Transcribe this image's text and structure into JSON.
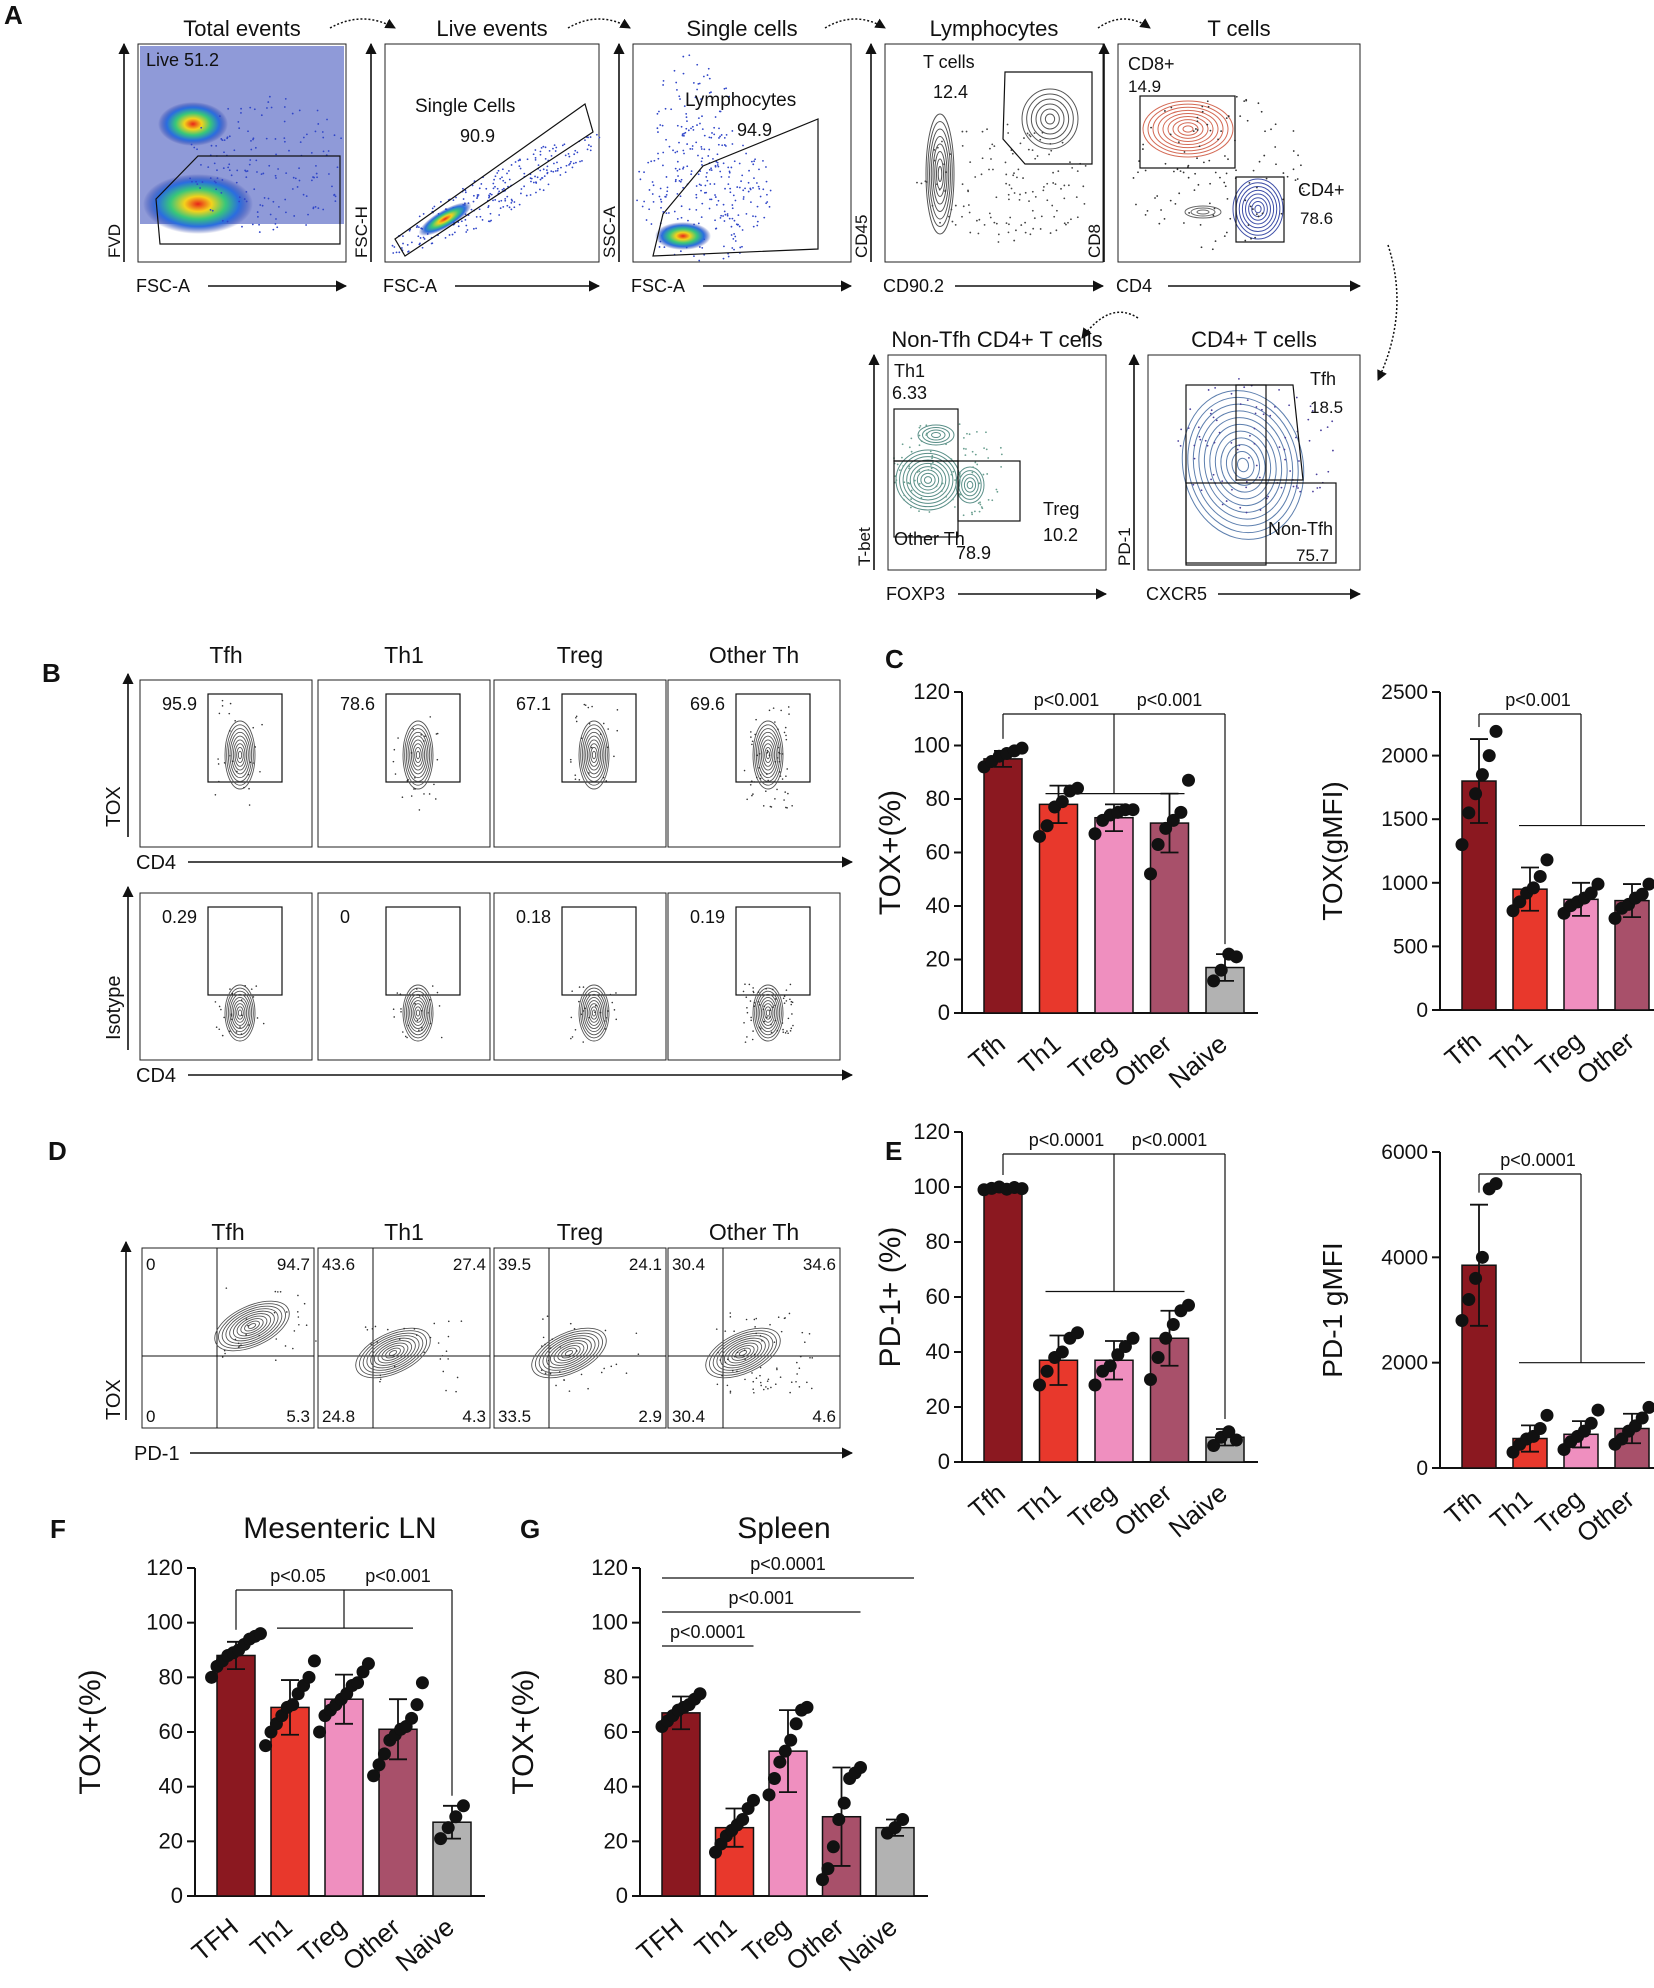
{
  "panel_letters": [
    "A",
    "B",
    "C",
    "D",
    "E",
    "F",
    "G"
  ],
  "colors": {
    "tfh": "#8b1820",
    "th1": "#e8382c",
    "treg": "#ef8fbf",
    "other": "#a8506a",
    "naive": "#b2b2b2",
    "dot": "#111111"
  },
  "panelA": {
    "plots": [
      {
        "title": "Total events",
        "xlabel": "FSC-A",
        "ylabel": "FVD",
        "gates": [
          {
            "label": "Live",
            "value": "51.2"
          }
        ],
        "style": "density"
      },
      {
        "title": "Live events",
        "xlabel": "FSC-A",
        "ylabel": "FSC-H",
        "gates": [
          {
            "label": "Single Cells",
            "value": "90.9"
          }
        ],
        "style": "density"
      },
      {
        "title": "Single cells",
        "xlabel": "FSC-A",
        "ylabel": "SSC-A",
        "gates": [
          {
            "label": "Lymphocytes",
            "value": "94.9"
          }
        ],
        "style": "density"
      },
      {
        "title": "Lymphocytes",
        "xlabel": "CD90.2",
        "ylabel": "CD45",
        "gates": [
          {
            "label": "T cells",
            "value": "12.4"
          }
        ],
        "style": "contour"
      },
      {
        "title": "T cells",
        "xlabel": "CD4",
        "ylabel": "CD8",
        "gates": [
          {
            "label": "CD8+",
            "value": "14.9"
          },
          {
            "label": "CD4+",
            "value": "78.6"
          }
        ],
        "style": "contour"
      },
      {
        "title": "CD4+ T cells",
        "xlabel": "CXCR5",
        "ylabel": "PD-1",
        "gates": [
          {
            "label": "Tfh",
            "value": "18.5"
          },
          {
            "label": "Non-Tfh",
            "value": "75.7"
          }
        ],
        "style": "contour"
      },
      {
        "title": "Non-Tfh CD4+ T cells",
        "xlabel": "FOXP3",
        "ylabel": "T-bet",
        "gates": [
          {
            "label": "Th1",
            "value": "6.33"
          },
          {
            "label": "Treg",
            "value": "10.2"
          },
          {
            "label": "Other Th",
            "value": "78.9"
          }
        ],
        "style": "contour"
      }
    ]
  },
  "panelB": {
    "columns": [
      "Tfh",
      "Th1",
      "Treg",
      "Other Th"
    ],
    "rows": [
      {
        "ylabel": "TOX",
        "xlabel": "CD4",
        "values": [
          "95.9",
          "78.6",
          "67.1",
          "69.6"
        ]
      },
      {
        "ylabel": "Isotype",
        "xlabel": "CD4",
        "values": [
          "0.29",
          "0",
          "0.18",
          "0.19"
        ]
      }
    ]
  },
  "panelD": {
    "columns": [
      "Tfh",
      "Th1",
      "Treg",
      "Other Th"
    ],
    "ylabel": "TOX",
    "xlabel": "PD-1",
    "quadrants": [
      {
        "ul": "0",
        "ur": "94.7",
        "ll": "0",
        "lr": "5.3"
      },
      {
        "ul": "43.6",
        "ur": "27.4",
        "ll": "24.8",
        "lr": "4.3"
      },
      {
        "ul": "39.5",
        "ur": "24.1",
        "ll": "33.5",
        "lr": "2.9"
      },
      {
        "ul": "30.4",
        "ur": "34.6",
        "ll": "30.4",
        "lr": "4.6"
      }
    ]
  },
  "chart_data": [
    {
      "id": "C1",
      "type": "bar",
      "title": "",
      "ylabel": "TOX+(%)",
      "categories": [
        "Tfh",
        "Th1",
        "Treg",
        "Other",
        "Naive"
      ],
      "values": [
        95,
        78,
        73,
        71,
        17
      ],
      "errors": [
        3,
        7,
        5,
        11,
        5
      ],
      "ylim": [
        0,
        120
      ],
      "yticks": [
        0,
        20,
        40,
        60,
        80,
        100,
        120
      ],
      "points": [
        [
          92,
          94,
          96,
          97,
          98,
          99
        ],
        [
          66,
          70,
          77,
          79,
          83,
          84
        ],
        [
          67,
          72,
          74,
          75,
          76,
          76
        ],
        [
          52,
          63,
          69,
          72,
          75,
          87
        ],
        [
          12,
          16,
          22,
          21
        ]
      ],
      "comparisons": [
        {
          "text": "p<0.001",
          "from": 0,
          "to": [
            1,
            2,
            3
          ]
        },
        {
          "text": "p<0.001",
          "from": 4,
          "to": [
            1,
            2,
            3
          ]
        }
      ]
    },
    {
      "id": "C2",
      "type": "bar",
      "title": "",
      "ylabel": "TOX(gMFI)",
      "categories": [
        "Tfh",
        "Th1",
        "Treg",
        "Other"
      ],
      "values": [
        1800,
        950,
        870,
        860
      ],
      "errors": [
        330,
        170,
        130,
        130
      ],
      "ylim": [
        0,
        2500
      ],
      "yticks": [
        0,
        500,
        1000,
        1500,
        2000,
        2500
      ],
      "points": [
        [
          1300,
          1550,
          1700,
          1850,
          2000,
          2190
        ],
        [
          780,
          850,
          920,
          960,
          1050,
          1180
        ],
        [
          760,
          820,
          850,
          880,
          920,
          990
        ],
        [
          720,
          800,
          830,
          880,
          910,
          990
        ]
      ],
      "comparisons": [
        {
          "text": "p<0.001",
          "from": 0,
          "to": [
            1,
            2,
            3
          ]
        }
      ]
    },
    {
      "id": "E1",
      "type": "bar",
      "title": "",
      "ylabel": "PD-1+ (%)",
      "categories": [
        "Tfh",
        "Th1",
        "Treg",
        "Other",
        "Naive"
      ],
      "values": [
        99.5,
        37,
        37,
        45,
        9
      ],
      "errors": [
        0.5,
        9,
        7,
        10,
        3
      ],
      "ylim": [
        0,
        120
      ],
      "yticks": [
        0,
        20,
        40,
        60,
        80,
        100,
        120
      ],
      "points": [
        [
          99,
          99.5,
          100,
          99.2,
          99.8,
          99.4
        ],
        [
          28,
          33,
          38,
          40,
          45,
          47
        ],
        [
          28,
          33,
          35,
          39,
          42,
          45
        ],
        [
          30,
          38,
          45,
          50,
          55,
          57
        ],
        [
          6,
          9,
          11,
          8
        ]
      ],
      "comparisons": [
        {
          "text": "p<0.0001",
          "from": 0,
          "to": [
            1,
            2,
            3
          ]
        },
        {
          "text": "p<0.0001",
          "from": 4,
          "to": [
            1,
            2,
            3
          ]
        }
      ]
    },
    {
      "id": "E2",
      "type": "bar",
      "title": "",
      "ylabel": "PD-1 gMFI",
      "categories": [
        "Tfh",
        "Th1",
        "Treg",
        "Other"
      ],
      "values": [
        3850,
        560,
        640,
        750
      ],
      "errors": [
        1150,
        250,
        250,
        280
      ],
      "ylim": [
        0,
        6000
      ],
      "yticks": [
        0,
        2000,
        4000,
        6000
      ],
      "points": [
        [
          2800,
          3200,
          3600,
          4000,
          5300,
          5400
        ],
        [
          300,
          450,
          550,
          600,
          750,
          1000
        ],
        [
          350,
          500,
          600,
          700,
          850,
          1100
        ],
        [
          450,
          550,
          700,
          800,
          950,
          1150
        ]
      ],
      "comparisons": [
        {
          "text": "p<0.0001",
          "from": 0,
          "to": [
            1,
            2,
            3
          ]
        }
      ]
    },
    {
      "id": "F",
      "type": "bar",
      "title": "Mesenteric LN",
      "ylabel": "TOX+(%)",
      "categories": [
        "TFH",
        "Th1",
        "Treg",
        "Other",
        "Naive"
      ],
      "values": [
        88,
        69,
        72,
        61,
        27
      ],
      "errors": [
        5,
        10,
        9,
        11,
        6
      ],
      "ylim": [
        0,
        120
      ],
      "yticks": [
        0,
        20,
        40,
        60,
        80,
        100,
        120
      ],
      "points": [
        [
          80,
          84,
          86,
          88,
          89,
          90,
          92,
          94,
          95,
          96
        ],
        [
          55,
          60,
          63,
          66,
          69,
          70,
          74,
          77,
          80,
          86
        ],
        [
          60,
          66,
          68,
          70,
          72,
          74,
          77,
          78,
          82,
          85
        ],
        [
          44,
          48,
          52,
          57,
          59,
          61,
          62,
          65,
          70,
          78
        ],
        [
          21,
          25,
          29,
          33
        ]
      ],
      "comparisons": [
        {
          "text": "p<0.05",
          "from": 0,
          "to": [
            1,
            2,
            3
          ]
        },
        {
          "text": "p<0.001",
          "from": 4,
          "to": [
            1,
            2,
            3
          ]
        }
      ]
    },
    {
      "id": "G",
      "type": "bar",
      "title": "Spleen",
      "ylabel": "TOX+(%)",
      "categories": [
        "TFH",
        "Th1",
        "Treg",
        "Other",
        "Naive"
      ],
      "values": [
        67,
        25,
        53,
        29,
        25
      ],
      "errors": [
        6,
        7,
        15,
        18,
        3
      ],
      "ylim": [
        0,
        120
      ],
      "yticks": [
        0,
        20,
        40,
        60,
        80,
        100,
        120
      ],
      "points": [
        [
          62,
          64,
          66,
          68,
          69,
          70,
          72,
          74
        ],
        [
          16,
          19,
          22,
          24,
          26,
          28,
          32,
          35
        ],
        [
          37,
          43,
          49,
          53,
          57,
          63,
          68,
          69
        ],
        [
          6,
          10,
          18,
          28,
          34,
          43,
          45,
          47
        ],
        [
          23,
          25,
          28
        ]
      ],
      "comparisons": [
        {
          "text": "p<0.0001",
          "pair": [
            0,
            1
          ]
        },
        {
          "text": "p<0.001",
          "pair": [
            0,
            3
          ]
        },
        {
          "text": "p<0.0001",
          "pair": [
            0,
            4
          ]
        }
      ]
    }
  ]
}
